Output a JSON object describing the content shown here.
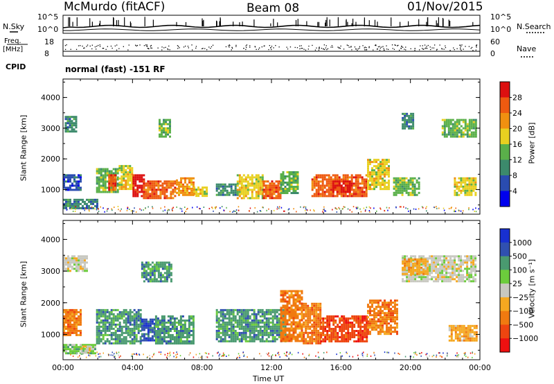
{
  "header": {
    "station": "McMurdo (fitACF)",
    "beam": "Beam 08",
    "date": "01/Nov/2015"
  },
  "top_panel": {
    "left_label": "N.Sky",
    "right_label": "N.Search",
    "left_ticks": [
      "10^5",
      "10^0"
    ],
    "right_ticks": [
      "10^5",
      "10^0"
    ]
  },
  "freq_panel": {
    "left_label_line1": "Freq.",
    "left_label_line2": "[MHz]",
    "right_label": "Nave",
    "left_ticks": [
      "18",
      "8"
    ],
    "right_ticks": [
      "60",
      "0"
    ]
  },
  "cpid": {
    "label": "CPID",
    "value": "normal (fast) -151 RF"
  },
  "colors": {
    "power_scale": [
      "#0000ee",
      "#2a4cb0",
      "#3c8a6c",
      "#5ab04a",
      "#e8d020",
      "#f09010",
      "#ee5a10",
      "#dd1010"
    ],
    "velocity_scale": [
      "#ee1010",
      "#ee4510",
      "#f07a10",
      "#f5a820",
      "#c8c8c0",
      "#6ccc3c",
      "#4a9a70",
      "#3050b0",
      "#1830d0"
    ]
  },
  "chart_data": [
    {
      "type": "heatmap",
      "name": "power",
      "ylabel": "Slant Range [km]",
      "xlabel": "",
      "x_ticks": [
        "00:00",
        "04:00",
        "08:00",
        "12:00",
        "16:00",
        "20:00",
        "00:00"
      ],
      "y_ticks": [
        "1000",
        "2000",
        "3000",
        "4000"
      ],
      "xlim": [
        0,
        24
      ],
      "ylim": [
        200,
        4600
      ],
      "colorbar": {
        "label": "Power [dB]",
        "ticks": [
          "28",
          "24",
          "20",
          "16",
          "12",
          "8",
          "4"
        ]
      },
      "patches": [
        {
          "t0": 0.0,
          "t1": 2.0,
          "r0": 400,
          "r1": 700,
          "c": 2
        },
        {
          "t0": 0.0,
          "t1": 1.0,
          "r0": 1000,
          "r1": 1500,
          "c": 1
        },
        {
          "t0": 0.1,
          "t1": 0.7,
          "r0": 2900,
          "r1": 3400,
          "c": 2
        },
        {
          "t0": 1.9,
          "t1": 3.2,
          "r0": 900,
          "r1": 1700,
          "c": 3
        },
        {
          "t0": 2.6,
          "t1": 3.0,
          "r0": 1000,
          "r1": 1500,
          "c": 6
        },
        {
          "t0": 3.2,
          "t1": 4.0,
          "r0": 1000,
          "r1": 1800,
          "c": 4
        },
        {
          "t0": 4.0,
          "t1": 4.6,
          "r0": 800,
          "r1": 1500,
          "c": 7
        },
        {
          "t0": 4.6,
          "t1": 6.5,
          "r0": 700,
          "r1": 1300,
          "c": 6
        },
        {
          "t0": 5.5,
          "t1": 6.2,
          "r0": 2700,
          "r1": 3300,
          "c": 3
        },
        {
          "t0": 6.5,
          "t1": 7.5,
          "r0": 800,
          "r1": 1400,
          "c": 5
        },
        {
          "t0": 7.5,
          "t1": 8.3,
          "r0": 800,
          "r1": 1100,
          "c": 4
        },
        {
          "t0": 8.8,
          "t1": 10.0,
          "r0": 800,
          "r1": 1200,
          "c": 2
        },
        {
          "t0": 10.0,
          "t1": 11.5,
          "r0": 700,
          "r1": 1500,
          "c": 4
        },
        {
          "t0": 11.5,
          "t1": 12.5,
          "r0": 700,
          "r1": 1300,
          "c": 6
        },
        {
          "t0": 12.5,
          "t1": 13.5,
          "r0": 900,
          "r1": 1600,
          "c": 3
        },
        {
          "t0": 14.3,
          "t1": 17.5,
          "r0": 800,
          "r1": 1500,
          "c": 6
        },
        {
          "t0": 15.5,
          "t1": 16.5,
          "r0": 900,
          "r1": 1300,
          "c": 7
        },
        {
          "t0": 17.5,
          "t1": 18.8,
          "r0": 1000,
          "r1": 2000,
          "c": 4
        },
        {
          "t0": 19.0,
          "t1": 20.5,
          "r0": 800,
          "r1": 1400,
          "c": 3
        },
        {
          "t0": 19.5,
          "t1": 20.2,
          "r0": 3000,
          "r1": 3500,
          "c": 2
        },
        {
          "t0": 21.8,
          "t1": 23.8,
          "r0": 2700,
          "r1": 3300,
          "c": 3
        },
        {
          "t0": 22.5,
          "t1": 23.8,
          "r0": 800,
          "r1": 1400,
          "c": 4
        }
      ]
    },
    {
      "type": "heatmap",
      "name": "velocity",
      "ylabel": "Slant Range [km]",
      "xlabel": "Time UT",
      "x_ticks": [
        "00:00",
        "04:00",
        "08:00",
        "12:00",
        "16:00",
        "20:00",
        "00:00"
      ],
      "y_ticks": [
        "1000",
        "2000",
        "3000",
        "4000"
      ],
      "xlim": [
        0,
        24
      ],
      "ylim": [
        200,
        4600
      ],
      "colorbar": {
        "label": "Velocity [m s⁻¹]",
        "ticks": [
          "1000",
          "500",
          "100",
          "25",
          "−25",
          "−100",
          "−500",
          "−1000"
        ]
      },
      "patches": [
        {
          "t0": 0.0,
          "t1": 1.0,
          "r0": 1000,
          "r1": 1800,
          "c": 2
        },
        {
          "t0": 0.0,
          "t1": 1.8,
          "r0": 400,
          "r1": 700,
          "c": 5
        },
        {
          "t0": 1.0,
          "t1": 1.5,
          "r0": 400,
          "r1": 650,
          "c": 4
        },
        {
          "t0": 0.0,
          "t1": 1.4,
          "r0": 3000,
          "r1": 3500,
          "c": 4
        },
        {
          "t0": 1.9,
          "t1": 4.5,
          "r0": 700,
          "r1": 1800,
          "c": 6
        },
        {
          "t0": 4.5,
          "t1": 5.3,
          "r0": 800,
          "r1": 1500,
          "c": 7
        },
        {
          "t0": 5.3,
          "t1": 7.5,
          "r0": 700,
          "r1": 1600,
          "c": 6
        },
        {
          "t0": 4.5,
          "t1": 6.2,
          "r0": 2700,
          "r1": 3300,
          "c": 6
        },
        {
          "t0": 8.8,
          "t1": 12.8,
          "r0": 800,
          "r1": 1800,
          "c": 6
        },
        {
          "t0": 12.5,
          "t1": 13.8,
          "r0": 800,
          "r1": 2400,
          "c": 2
        },
        {
          "t0": 13.8,
          "t1": 14.8,
          "r0": 700,
          "r1": 2000,
          "c": 2
        },
        {
          "t0": 14.8,
          "t1": 17.5,
          "r0": 800,
          "r1": 1600,
          "c": 1
        },
        {
          "t0": 17.5,
          "t1": 19.2,
          "r0": 1000,
          "r1": 2100,
          "c": 2
        },
        {
          "t0": 19.5,
          "t1": 23.8,
          "r0": 2700,
          "r1": 3500,
          "c": 4
        },
        {
          "t0": 19.5,
          "t1": 21.0,
          "r0": 2900,
          "r1": 3400,
          "c": 3
        },
        {
          "t0": 22.2,
          "t1": 23.8,
          "r0": 800,
          "r1": 1300,
          "c": 3
        }
      ]
    }
  ]
}
